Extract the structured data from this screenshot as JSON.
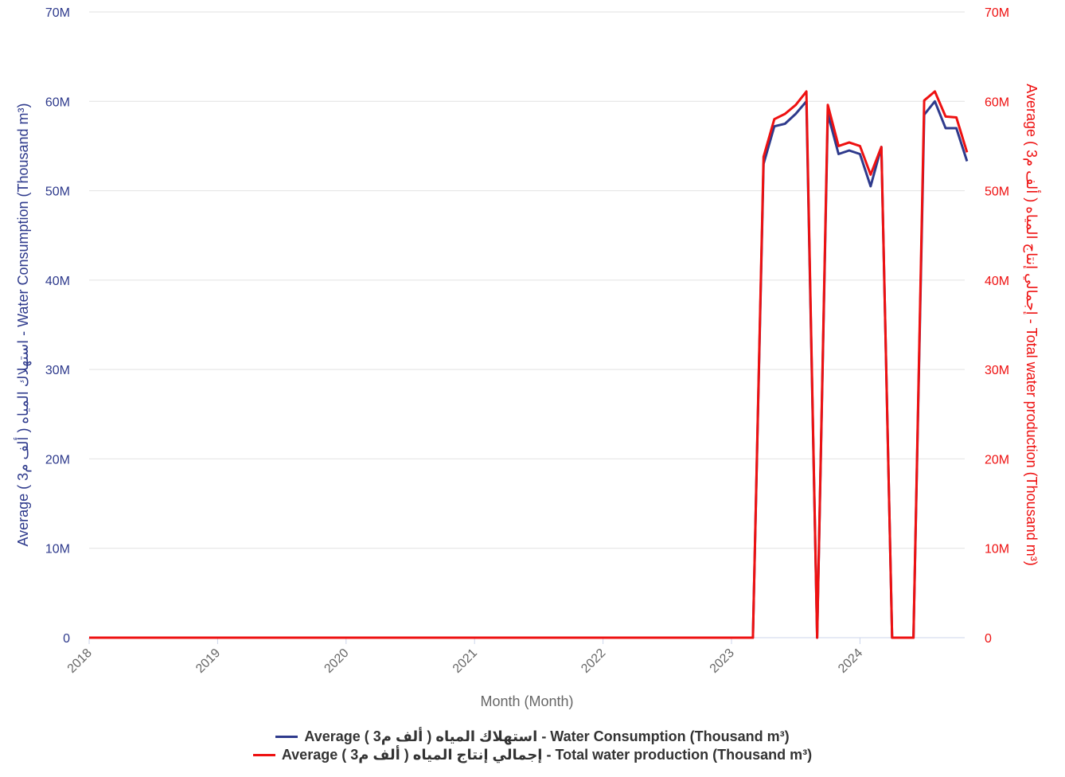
{
  "chart_data": {
    "type": "line",
    "xlabel": "Month (Month)",
    "x_ticks": [
      "2018",
      "2019",
      "2020",
      "2021",
      "2022",
      "2023",
      "2024"
    ],
    "x_start": "2018-01",
    "y_left": {
      "label": "Average ( ألف م3 ) استهلاك المياه - Water Consumption (Thousand m³)",
      "ticks": [
        "0",
        "10M",
        "20M",
        "30M",
        "40M",
        "50M",
        "60M",
        "70M"
      ],
      "ylim": [
        0,
        70000000
      ],
      "color": "#2e3a8c"
    },
    "y_right": {
      "label": "Average ( ألف م3 ) إجمالي إنتاج المياه - Total water production (Thousand m³)",
      "ticks": [
        "0",
        "10M",
        "20M",
        "30M",
        "40M",
        "50M",
        "60M",
        "70M"
      ],
      "ylim": [
        0,
        70000000
      ],
      "color": "#ee1111"
    },
    "grid": true,
    "legend_position": "bottom",
    "months": [
      "2018-01",
      "2018-02",
      "2018-03",
      "2018-04",
      "2018-05",
      "2018-06",
      "2018-07",
      "2018-08",
      "2018-09",
      "2018-10",
      "2018-11",
      "2018-12",
      "2019-01",
      "2019-02",
      "2019-03",
      "2019-04",
      "2019-05",
      "2019-06",
      "2019-07",
      "2019-08",
      "2019-09",
      "2019-10",
      "2019-11",
      "2019-12",
      "2020-01",
      "2020-02",
      "2020-03",
      "2020-04",
      "2020-05",
      "2020-06",
      "2020-07",
      "2020-08",
      "2020-09",
      "2020-10",
      "2020-11",
      "2020-12",
      "2021-01",
      "2021-02",
      "2021-03",
      "2021-04",
      "2021-05",
      "2021-06",
      "2021-07",
      "2021-08",
      "2021-09",
      "2021-10",
      "2021-11",
      "2021-12",
      "2022-01",
      "2022-02",
      "2022-03",
      "2022-04",
      "2022-05",
      "2022-06",
      "2022-07",
      "2022-08",
      "2022-09",
      "2022-10",
      "2022-11",
      "2022-12",
      "2023-01",
      "2023-02",
      "2023-03",
      "2023-04",
      "2023-05",
      "2023-06",
      "2023-07",
      "2023-08",
      "2023-09",
      "2023-10",
      "2023-11",
      "2023-12",
      "2024-01",
      "2024-02",
      "2024-03",
      "2024-04",
      "2024-05",
      "2024-06",
      "2024-07",
      "2024-08",
      "2024-09",
      "2024-10",
      "2024-11"
    ],
    "series": [
      {
        "name": "Average ( ألف م3 ) استهلاك المياه - Water Consumption (Thousand m³)",
        "color": "#2e3a8c",
        "axis": "left",
        "values": [
          0,
          0,
          0,
          0,
          0,
          0,
          0,
          0,
          0,
          0,
          0,
          0,
          0,
          0,
          0,
          0,
          0,
          0,
          0,
          0,
          0,
          0,
          0,
          0,
          0,
          0,
          0,
          0,
          0,
          0,
          0,
          0,
          0,
          0,
          0,
          0,
          0,
          0,
          0,
          0,
          0,
          0,
          0,
          0,
          0,
          0,
          0,
          0,
          0,
          0,
          0,
          0,
          0,
          0,
          0,
          0,
          0,
          0,
          0,
          0,
          0,
          0,
          0,
          53000000,
          57200000,
          57500000,
          58600000,
          60000000,
          0,
          58600000,
          54100000,
          54500000,
          54100000,
          50500000,
          54900000,
          0,
          0,
          0,
          58500000,
          60000000,
          57000000,
          57000000,
          53300000
        ]
      },
      {
        "name": "Average ( ألف م3 ) إجمالي إنتاج المياه - Total water production (Thousand m³)",
        "color": "#ee1111",
        "axis": "right",
        "values": [
          0,
          0,
          0,
          0,
          0,
          0,
          0,
          0,
          0,
          0,
          0,
          0,
          0,
          0,
          0,
          0,
          0,
          0,
          0,
          0,
          0,
          0,
          0,
          0,
          0,
          0,
          0,
          0,
          0,
          0,
          0,
          0,
          0,
          0,
          0,
          0,
          0,
          0,
          0,
          0,
          0,
          0,
          0,
          0,
          0,
          0,
          0,
          0,
          0,
          0,
          0,
          0,
          0,
          0,
          0,
          0,
          0,
          0,
          0,
          0,
          0,
          0,
          0,
          53800000,
          58000000,
          58600000,
          59600000,
          61100000,
          0,
          59600000,
          55000000,
          55400000,
          55000000,
          51800000,
          54900000,
          0,
          0,
          0,
          60100000,
          61100000,
          58300000,
          58200000,
          54300000
        ]
      }
    ]
  }
}
